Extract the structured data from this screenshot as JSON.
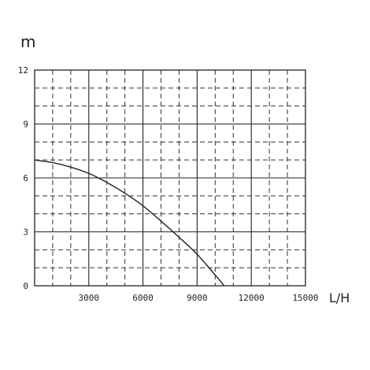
{
  "chart_data": {
    "type": "line",
    "title": "",
    "xlabel": "L/H",
    "ylabel": "m",
    "xlim": [
      0,
      15000
    ],
    "ylim": [
      0,
      12
    ],
    "x_ticks": [
      3000,
      6000,
      9000,
      12000,
      15000
    ],
    "x_tick_labels": [
      "3000",
      "6000",
      "9000",
      "12000",
      "15000"
    ],
    "y_ticks": [
      0,
      3,
      6,
      9,
      12
    ],
    "y_tick_labels": [
      "0",
      "3",
      "6",
      "9",
      "12"
    ],
    "grid": {
      "major": true,
      "minor": true,
      "minor_style": "dashed",
      "x_minor_step": 1000,
      "y_minor_step": 1
    },
    "series": [
      {
        "color": "#222222",
        "x": [
          0,
          1000,
          2000,
          3000,
          4000,
          5000,
          6000,
          7000,
          8000,
          9000,
          10000,
          10500
        ],
        "y": [
          7.0,
          6.85,
          6.6,
          6.25,
          5.75,
          5.15,
          4.45,
          3.6,
          2.7,
          1.75,
          0.6,
          0
        ]
      }
    ]
  }
}
